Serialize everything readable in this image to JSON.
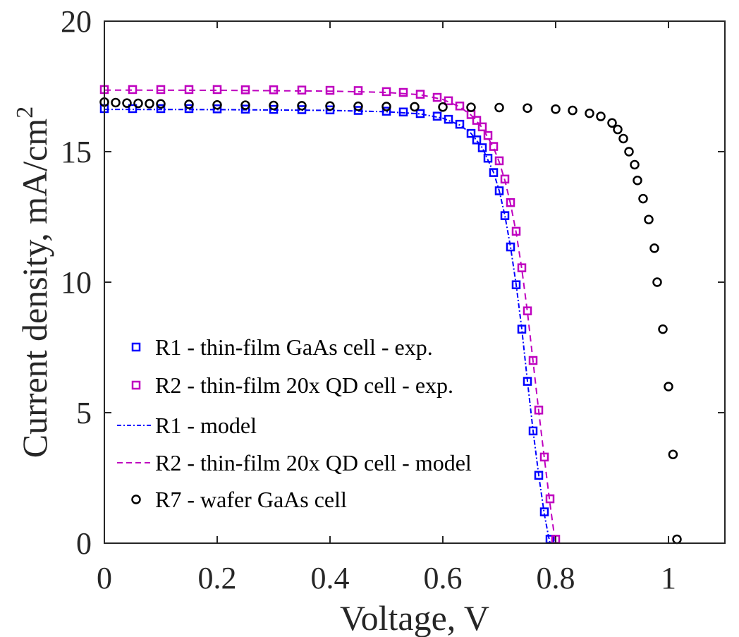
{
  "chart_data": {
    "type": "scatter",
    "title": "",
    "xlabel": "Voltage, V",
    "ylabel_main": "Current density, mA/cm",
    "ylabel_superscript": "2",
    "xlim": [
      0,
      1.1
    ],
    "ylim": [
      0,
      20
    ],
    "xticks": [
      0,
      0.2,
      0.4,
      0.6,
      0.8,
      1
    ],
    "xtick_labels": [
      "0",
      "0.2",
      "0.4",
      "0.6",
      "0.8",
      "1"
    ],
    "yticks": [
      0,
      5,
      10,
      15,
      20
    ],
    "ytick_labels": [
      "0",
      "5",
      "10",
      "15",
      "20"
    ],
    "grid": false,
    "legend_position": "lower-left",
    "series": [
      {
        "name": "R1 - thin-film GaAs cell - exp.",
        "color": "#0000ff",
        "marker": "square",
        "line": "none",
        "x": [
          0.0,
          0.05,
          0.1,
          0.15,
          0.2,
          0.25,
          0.3,
          0.35,
          0.4,
          0.45,
          0.5,
          0.53,
          0.56,
          0.59,
          0.61,
          0.63,
          0.65,
          0.66,
          0.67,
          0.68,
          0.69,
          0.7,
          0.71,
          0.72,
          0.73,
          0.74,
          0.75,
          0.76,
          0.77,
          0.78,
          0.79
        ],
        "y": [
          16.65,
          16.65,
          16.65,
          16.65,
          16.64,
          16.63,
          16.62,
          16.61,
          16.6,
          16.58,
          16.55,
          16.52,
          16.46,
          16.36,
          16.24,
          16.05,
          15.7,
          15.45,
          15.15,
          14.75,
          14.2,
          13.5,
          12.55,
          11.35,
          9.9,
          8.2,
          6.2,
          4.3,
          2.6,
          1.2,
          0.15
        ]
      },
      {
        "name": "R2 - thin-film 20x QD cell - exp.",
        "color": "#bf00bf",
        "marker": "square",
        "line": "none",
        "x": [
          0.0,
          0.05,
          0.1,
          0.15,
          0.2,
          0.25,
          0.3,
          0.35,
          0.4,
          0.45,
          0.5,
          0.53,
          0.56,
          0.59,
          0.61,
          0.63,
          0.65,
          0.66,
          0.67,
          0.68,
          0.69,
          0.7,
          0.71,
          0.72,
          0.73,
          0.74,
          0.75,
          0.76,
          0.77,
          0.78,
          0.79,
          0.8
        ],
        "y": [
          17.38,
          17.38,
          17.38,
          17.38,
          17.38,
          17.37,
          17.37,
          17.36,
          17.35,
          17.34,
          17.3,
          17.27,
          17.2,
          17.08,
          16.95,
          16.75,
          16.42,
          16.2,
          15.95,
          15.62,
          15.2,
          14.65,
          13.95,
          13.05,
          11.95,
          10.55,
          8.9,
          7.0,
          5.1,
          3.3,
          1.7,
          0.15
        ]
      },
      {
        "name": "R1 - model",
        "color": "#0000ff",
        "marker": "none",
        "line": "dash-dot",
        "x": [
          0.0,
          0.2,
          0.4,
          0.5,
          0.56,
          0.6,
          0.63,
          0.65,
          0.67,
          0.69,
          0.7,
          0.71,
          0.72,
          0.73,
          0.74,
          0.75,
          0.76,
          0.77,
          0.78,
          0.787,
          0.79
        ],
        "y": [
          16.62,
          16.61,
          16.58,
          16.53,
          16.45,
          16.28,
          16.02,
          15.7,
          15.15,
          14.2,
          13.5,
          12.55,
          11.35,
          9.9,
          8.2,
          6.2,
          4.3,
          2.6,
          1.1,
          0.3,
          0.0
        ]
      },
      {
        "name": "R2 - thin-film 20x QD cell - model",
        "color": "#bf00bf",
        "marker": "none",
        "line": "dashed",
        "x": [
          0.0,
          0.2,
          0.4,
          0.5,
          0.56,
          0.6,
          0.63,
          0.65,
          0.67,
          0.69,
          0.7,
          0.71,
          0.72,
          0.73,
          0.74,
          0.75,
          0.76,
          0.77,
          0.78,
          0.79,
          0.797,
          0.8
        ],
        "y": [
          17.36,
          17.35,
          17.32,
          17.27,
          17.18,
          17.0,
          16.72,
          16.4,
          15.92,
          15.15,
          14.6,
          13.9,
          13.0,
          11.9,
          10.5,
          8.85,
          6.95,
          5.05,
          3.25,
          1.5,
          0.4,
          0.0
        ]
      },
      {
        "name": "R7 - wafer GaAs cell",
        "color": "#000000",
        "marker": "circle",
        "line": "none",
        "x": [
          0.0,
          0.02,
          0.04,
          0.06,
          0.08,
          0.1,
          0.15,
          0.2,
          0.25,
          0.3,
          0.35,
          0.4,
          0.45,
          0.5,
          0.55,
          0.6,
          0.65,
          0.7,
          0.75,
          0.8,
          0.83,
          0.86,
          0.88,
          0.9,
          0.91,
          0.92,
          0.93,
          0.94,
          0.945,
          0.955,
          0.965,
          0.975,
          0.98,
          0.99,
          1.0,
          1.008,
          1.015
        ],
        "y": [
          16.9,
          16.88,
          16.86,
          16.85,
          16.84,
          16.83,
          16.81,
          16.79,
          16.78,
          16.77,
          16.76,
          16.75,
          16.74,
          16.73,
          16.72,
          16.71,
          16.7,
          16.69,
          16.67,
          16.63,
          16.58,
          16.47,
          16.35,
          16.1,
          15.85,
          15.5,
          15.0,
          14.5,
          13.9,
          13.2,
          12.4,
          11.3,
          10.0,
          8.2,
          6.0,
          3.4,
          0.15
        ]
      }
    ]
  }
}
